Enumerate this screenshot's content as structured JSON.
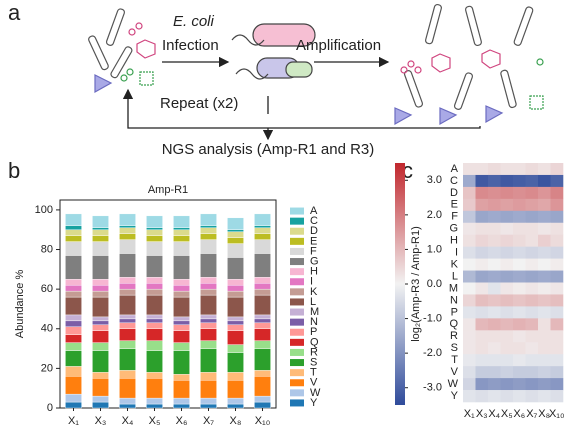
{
  "panel_labels": [
    "a",
    "b",
    "c"
  ],
  "diagram": {
    "organism": "E. coli",
    "step1": "Infection",
    "step2": "Amplification",
    "loop": "Repeat (x2)",
    "output": "NGS analysis (Amp-R1 and R3)"
  },
  "chart_data": [
    {
      "type": "stacked_bar",
      "title": "Amp-R1",
      "ylabel": "Abundance %",
      "categories": [
        "X₁",
        "X₃",
        "X₄",
        "X₅",
        "X₆",
        "X₇",
        "X₈",
        "X₁₀"
      ],
      "ylim": [
        0,
        105
      ],
      "yticks": [
        0,
        20,
        40,
        60,
        80,
        100
      ],
      "legend": "right",
      "series": [
        {
          "name": "A",
          "color": "#9edae5",
          "values": [
            6,
            6,
            6,
            6,
            6,
            6,
            6,
            6
          ]
        },
        {
          "name": "C",
          "color": "#17a2a0",
          "values": [
            2,
            1,
            1,
            1,
            1,
            1,
            1,
            1
          ]
        },
        {
          "name": "D",
          "color": "#dbdb8d",
          "values": [
            3,
            3,
            3,
            3,
            3,
            3,
            3,
            3
          ]
        },
        {
          "name": "E",
          "color": "#bcbd22",
          "values": [
            3,
            3,
            3,
            3,
            3,
            3,
            3,
            3
          ]
        },
        {
          "name": "F",
          "color": "#d9d9d9",
          "values": [
            7,
            7,
            7,
            7,
            7,
            7,
            7,
            7
          ]
        },
        {
          "name": "G",
          "color": "#7f7f7f",
          "values": [
            12,
            12,
            12,
            11,
            12,
            12,
            11,
            12
          ]
        },
        {
          "name": "H",
          "color": "#f7b6d2",
          "values": [
            3,
            3,
            3,
            3,
            3,
            3,
            3,
            3
          ]
        },
        {
          "name": "I",
          "color": "#e377c2",
          "values": [
            3,
            3,
            3,
            3,
            3,
            3,
            3,
            3
          ]
        },
        {
          "name": "K",
          "color": "#c49c94",
          "values": [
            3,
            3,
            3,
            3,
            3,
            3,
            3,
            3
          ]
        },
        {
          "name": "L",
          "color": "#8c564b",
          "values": [
            9,
            10,
            10,
            10,
            10,
            10,
            10,
            10
          ]
        },
        {
          "name": "M",
          "color": "#c5b0d5",
          "values": [
            3,
            2,
            2,
            2,
            2,
            2,
            2,
            2
          ]
        },
        {
          "name": "N",
          "color": "#7b5ea7",
          "values": [
            3,
            2,
            2,
            2,
            2,
            2,
            2,
            2
          ]
        },
        {
          "name": "P",
          "color": "#ff9896",
          "values": [
            4,
            3,
            3,
            3,
            3,
            3,
            3,
            3
          ]
        },
        {
          "name": "Q",
          "color": "#d62728",
          "values": [
            4,
            6,
            6,
            6,
            6,
            6,
            7,
            6
          ]
        },
        {
          "name": "R",
          "color": "#98df8a",
          "values": [
            4,
            4,
            4,
            5,
            4,
            4,
            4,
            4
          ]
        },
        {
          "name": "S",
          "color": "#2ca02c",
          "values": [
            8,
            11,
            11,
            11,
            12,
            12,
            10,
            11
          ]
        },
        {
          "name": "T",
          "color": "#ffbb78",
          "values": [
            5,
            3,
            4,
            3,
            3,
            4,
            4,
            3
          ]
        },
        {
          "name": "V",
          "color": "#ff7f0e",
          "values": [
            9,
            9,
            10,
            10,
            9,
            9,
            9,
            10
          ]
        },
        {
          "name": "W",
          "color": "#aec7e8",
          "values": [
            4,
            3,
            3,
            3,
            3,
            3,
            3,
            3
          ]
        },
        {
          "name": "Y",
          "color": "#1f77b4",
          "values": [
            3,
            3,
            2,
            2,
            2,
            2,
            2,
            3
          ]
        }
      ]
    },
    {
      "type": "heatmap",
      "ylabel": "log₂(Amp-R3 / Amp-R1)",
      "x": [
        "X₁",
        "X₃",
        "X₄",
        "X₅",
        "X₆",
        "X₇",
        "X₈",
        "X₁₀"
      ],
      "y": [
        "A",
        "C",
        "D",
        "E",
        "F",
        "G",
        "H",
        "I",
        "K",
        "L",
        "M",
        "N",
        "P",
        "Q",
        "R",
        "S",
        "T",
        "V",
        "W",
        "Y"
      ],
      "zlim": [
        -3.5,
        3.5
      ],
      "zticks": [
        {
          "value": 3,
          "label": "3.0"
        },
        {
          "value": 2,
          "label": "2.0"
        },
        {
          "value": 1,
          "label": "1.0"
        },
        {
          "value": 0,
          "label": "0.0"
        },
        {
          "value": -1,
          "label": "-1.0"
        },
        {
          "value": -2,
          "label": "-2.0"
        },
        {
          "value": -3,
          "label": "-3.0"
        }
      ],
      "colormap": [
        "#2f4b9b",
        "#f2f2f2",
        "#c1272d"
      ],
      "values": [
        [
          0.3,
          0.3,
          0.4,
          0.3,
          0.3,
          0.4,
          0.3,
          0.5
        ],
        [
          -1.5,
          -3.2,
          -3.0,
          -3.2,
          -3.1,
          -3.0,
          -3.3,
          -3.0
        ],
        [
          0.8,
          1.8,
          1.7,
          1.8,
          1.7,
          1.8,
          1.6,
          1.9
        ],
        [
          0.7,
          1.4,
          1.5,
          1.4,
          1.5,
          1.4,
          1.3,
          1.6
        ],
        [
          -0.9,
          -1.6,
          -1.5,
          -1.6,
          -1.5,
          -1.6,
          -1.5,
          -1.6
        ],
        [
          0.2,
          0.3,
          0.3,
          0.2,
          0.3,
          0.3,
          0.2,
          0.3
        ],
        [
          0.3,
          0.5,
          0.4,
          0.5,
          0.4,
          0.3,
          0.6,
          0.4
        ],
        [
          -0.4,
          -0.6,
          -0.5,
          -0.6,
          -0.5,
          -0.6,
          -0.5,
          -0.6
        ],
        [
          0,
          0.1,
          0,
          0.1,
          0,
          0.1,
          0,
          0.1
        ],
        [
          -1.2,
          -1.6,
          -1.5,
          -1.6,
          -1.5,
          -1.6,
          -1.5,
          -1.6
        ],
        [
          0,
          0.2,
          -0.3,
          0.2,
          0.1,
          0.2,
          0.1,
          0.2
        ],
        [
          0.5,
          0.9,
          0.8,
          0.9,
          0.8,
          0.9,
          0.8,
          0.9
        ],
        [
          -0.3,
          -0.4,
          -0.3,
          -0.4,
          -0.3,
          -0.4,
          -0.3,
          -0.4
        ],
        [
          0.2,
          1.0,
          1.1,
          1.0,
          1.1,
          1.0,
          0.3,
          1.0
        ],
        [
          0.2,
          0.3,
          0.3,
          0.3,
          0.2,
          0.3,
          0.3,
          0.3
        ],
        [
          0.2,
          0.3,
          0.2,
          0.3,
          0.3,
          0.2,
          0.3,
          0.3
        ],
        [
          -0.2,
          -0.3,
          -0.3,
          -0.3,
          -0.2,
          -0.3,
          -0.3,
          -0.3
        ],
        [
          -0.4,
          -0.8,
          -0.8,
          -0.7,
          -0.8,
          -0.8,
          -0.7,
          -0.8
        ],
        [
          -0.6,
          -1.9,
          -1.8,
          -1.9,
          -1.8,
          -1.9,
          -1.8,
          -1.9
        ],
        [
          -0.3,
          -0.4,
          -0.3,
          -0.4,
          -0.3,
          -0.4,
          -0.3,
          -0.4
        ]
      ]
    }
  ]
}
